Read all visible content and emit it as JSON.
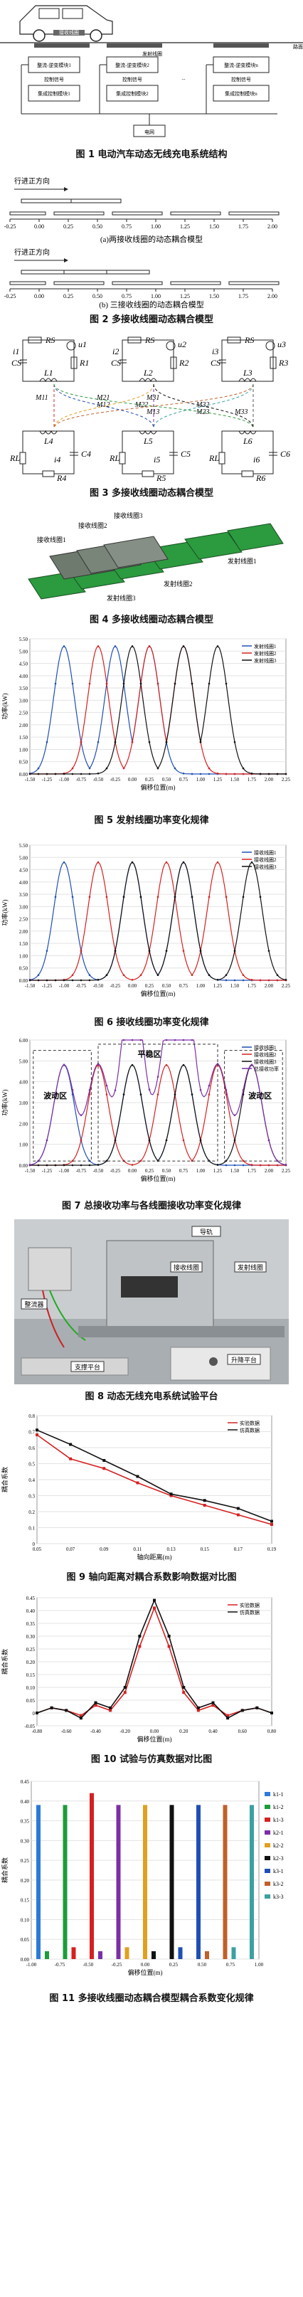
{
  "fig1": {
    "caption": "图 1  电动汽车动态无线充电系统结构",
    "road_label": "路面",
    "receiver_label": "接收线圈",
    "transmit_label": "发射线圈",
    "grid_label": "电网",
    "module_label_1": "整流-逆变模块1",
    "module_label_2": "整流-逆变模块2",
    "module_label_n": "整流-逆变模块n",
    "control_label": "控制信号",
    "ctrl_module_1": "集成控制模块1",
    "ctrl_module_2": "集成控制模块2",
    "ctrl_module_n": "集成控制模块n",
    "dots": "..."
  },
  "fig2": {
    "caption": "图 2  多接收线圈动态耦合模型",
    "direction": "行进正方向",
    "sub_a": "(a)两接收线圈的动态耦合模型",
    "sub_b": "(b) 三接收线圈的动态耦合模型",
    "ticks": [
      "-0.25",
      "0.00",
      "0.25",
      "0.50",
      "0.75",
      "1.00",
      "1.25",
      "1.50",
      "1.75",
      "2.00"
    ]
  },
  "fig3": {
    "caption": "图 3  多接收线圈动态耦合模型",
    "mutual": [
      "M11",
      "M12",
      "M13",
      "M21",
      "M22",
      "M23",
      "M31",
      "M32",
      "M33"
    ],
    "top": [
      {
        "R": "RS",
        "C": "CS",
        "u": "u1",
        "i": "i1",
        "L": "L1",
        "R1": "R1"
      },
      {
        "R": "RS",
        "C": "CS",
        "u": "u2",
        "i": "i2",
        "L": "L2",
        "R1": "R2"
      },
      {
        "R": "RS",
        "C": "CS",
        "u": "u3",
        "i": "i3",
        "L": "L3",
        "R1": "R3"
      }
    ],
    "bottom": [
      {
        "L": "L4",
        "C": "C4",
        "R": "RL",
        "i": "i4",
        "RB": "R4"
      },
      {
        "L": "L5",
        "C": "C5",
        "R": "RL",
        "i": "i5",
        "RB": "R5"
      },
      {
        "L": "L6",
        "C": "C6",
        "R": "RL",
        "i": "i6",
        "RB": "R6"
      }
    ]
  },
  "fig4": {
    "caption": "图 4  多接收线圈动态耦合模型",
    "labels": [
      "接收线圈1",
      "接收线圈2",
      "接收线圈3",
      "发射线圈1",
      "发射线圈2",
      "发射线圈3"
    ]
  },
  "fig5": {
    "caption": "图 5  发射线圈功率变化规律",
    "chart_data": {
      "type": "line",
      "xlabel": "偏移位置(m)",
      "ylabel": "功率(kW)",
      "xlim": [
        -1.5,
        2.25
      ],
      "ylim": [
        0,
        5.5
      ],
      "xticks": [
        "-1.50",
        "-1.25",
        "-1.00",
        "-0.75",
        "-0.50",
        "-0.25",
        "0.00",
        "0.25",
        "0.50",
        "0.75",
        "1.00",
        "1.25",
        "1.50",
        "1.75",
        "2.00",
        "2.25"
      ],
      "yticks": [
        "0.00",
        "0.50",
        "1.00",
        "1.50",
        "2.00",
        "2.50",
        "3.00",
        "3.50",
        "4.00",
        "4.50",
        "5.00",
        "5.50"
      ],
      "legend": "top-right",
      "series": [
        {
          "name": "发射线圈1",
          "color": "#1f4fb4",
          "peaks": [
            -1.0,
            -0.25,
            0.25
          ]
        },
        {
          "name": "发射线圈2",
          "color": "#d62020",
          "peaks": [
            -0.5,
            0.25,
            0.75
          ]
        },
        {
          "name": "发射线圈3",
          "color": "#111111",
          "peaks": [
            0.0,
            0.75,
            1.25
          ]
        }
      ],
      "peak_value": 5.2,
      "width": 0.15
    }
  },
  "fig6": {
    "caption": "图 6  接收线圈功率变化规律",
    "chart_data": {
      "type": "line",
      "xlabel": "偏移位置(m)",
      "ylabel": "功率(kW)",
      "xlim": [
        -1.5,
        2.25
      ],
      "ylim": [
        0,
        5.5
      ],
      "xticks": [
        "-1.50",
        "-1.25",
        "-1.00",
        "-0.75",
        "-0.50",
        "-0.25",
        "0.00",
        "0.25",
        "0.50",
        "0.75",
        "1.00",
        "1.25",
        "1.50",
        "1.75",
        "2.00",
        "2.25"
      ],
      "yticks": [
        "0.00",
        "0.50",
        "1.00",
        "1.50",
        "2.00",
        "2.50",
        "3.00",
        "3.50",
        "4.00",
        "4.50",
        "5.00",
        "5.50"
      ],
      "legend": "top-right",
      "series": [
        {
          "name": "接收线圈1",
          "color": "#1f4fb4",
          "peaks": [
            -1.0,
            0.0,
            0.75
          ]
        },
        {
          "name": "接收线圈2",
          "color": "#d62020",
          "peaks": [
            -0.5,
            0.5,
            1.25
          ]
        },
        {
          "name": "接收线圈3",
          "color": "#111111",
          "peaks": [
            0.0,
            0.75,
            1.75
          ]
        }
      ],
      "peak_value": 4.8,
      "width": 0.15
    }
  },
  "fig7": {
    "caption": "图 7  总接收功率与各线圈接收功率变化规律",
    "left_region": "波动区",
    "mid_region": "平稳区",
    "right_region": "波动区",
    "chart_data": {
      "type": "line",
      "xlabel": "偏移位置(m)",
      "ylabel": "功率(kW)",
      "xlim": [
        -1.5,
        2.25
      ],
      "ylim": [
        0,
        6
      ],
      "xticks": [
        "-1.50",
        "-1.25",
        "-1.00",
        "-0.75",
        "-0.50",
        "-0.25",
        "0.00",
        "0.25",
        "0.50",
        "0.75",
        "1.00",
        "1.25",
        "1.50",
        "1.75",
        "2.00",
        "2.25"
      ],
      "yticks": [
        "0.00",
        "1.00",
        "2.00",
        "3.00",
        "4.00",
        "5.00",
        "6.00"
      ],
      "legend": "top-right",
      "series": [
        {
          "name": "接收线圈1",
          "color": "#1f4fb4",
          "peaks": [
            -1.0,
            0.0,
            0.75
          ]
        },
        {
          "name": "接收线圈2",
          "color": "#d62020",
          "peaks": [
            -0.5,
            0.5,
            1.25
          ]
        },
        {
          "name": "接收线圈3",
          "color": "#111111",
          "peaks": [
            0.0,
            0.75,
            1.75
          ]
        },
        {
          "name": "总接收功率",
          "color": "#7b2fa6",
          "total": true
        }
      ],
      "peak_value": 4.8,
      "width": 0.15
    }
  },
  "fig8": {
    "caption": "图 8  动态无线充电系统试验平台",
    "labels": [
      "导轨",
      "接收线圈",
      "发射线圈",
      "整流器",
      "支撑平台",
      "升降平台"
    ]
  },
  "fig9": {
    "caption": "图 9  轴向距离对耦合系数影响数据对比图",
    "chart_data": {
      "type": "line",
      "xlabel": "轴向距离(m)",
      "ylabel": "耦合系数",
      "x": [
        0.05,
        0.07,
        0.09,
        0.11,
        0.13,
        0.15,
        0.17,
        0.19
      ],
      "xticks": [
        "0.05",
        "0.07",
        "0.09",
        "0.11",
        "0.13",
        "0.15",
        "0.17",
        "0.19"
      ],
      "yticks": [
        "0",
        "0.1",
        "0.2",
        "0.3",
        "0.4",
        "0.5",
        "0.6",
        "0.7",
        "0.8"
      ],
      "ylim": [
        0,
        0.8
      ],
      "legend": "top-right",
      "series": [
        {
          "name": "实验数据",
          "color": "#d62020",
          "values": [
            0.68,
            0.53,
            0.47,
            0.38,
            0.3,
            0.24,
            0.18,
            0.12
          ]
        },
        {
          "name": "仿真数据",
          "color": "#111111",
          "values": [
            0.71,
            0.62,
            0.52,
            0.42,
            0.31,
            0.27,
            0.22,
            0.14
          ]
        }
      ]
    }
  },
  "fig10": {
    "caption": "图 10  试验与仿真数据对比图",
    "chart_data": {
      "type": "line",
      "xlabel": "偏移位置(m)",
      "ylabel": "耦合系数",
      "x": [
        -0.8,
        -0.7,
        -0.6,
        -0.5,
        -0.4,
        -0.3,
        -0.2,
        -0.1,
        0.0,
        0.1,
        0.2,
        0.3,
        0.4,
        0.5,
        0.6,
        0.7,
        0.8
      ],
      "xticks": [
        "-0.80",
        "-0.60",
        "-0.40",
        "-0.20",
        "0.00",
        "0.20",
        "0.40",
        "0.60",
        "0.80"
      ],
      "yticks": [
        "-0.05",
        "0",
        "0.05",
        "0.10",
        "0.15",
        "0.20",
        "0.25",
        "0.30",
        "0.35",
        "0.40",
        "0.45"
      ],
      "ylim": [
        -0.05,
        0.45
      ],
      "legend": "top-right",
      "series": [
        {
          "name": "实验数据",
          "color": "#d62020",
          "values": [
            0.0,
            0.02,
            0.01,
            -0.01,
            0.03,
            0.01,
            0.08,
            0.26,
            0.41,
            0.26,
            0.08,
            0.01,
            0.03,
            -0.01,
            0.01,
            0.02,
            0.0
          ]
        },
        {
          "name": "仿真数据",
          "color": "#111111",
          "values": [
            0.0,
            0.02,
            0.01,
            -0.02,
            0.04,
            0.02,
            0.1,
            0.3,
            0.44,
            0.3,
            0.1,
            0.02,
            0.04,
            -0.02,
            0.01,
            0.02,
            0.0
          ]
        }
      ]
    }
  },
  "fig11": {
    "caption": "图 11  多接收线圈动态耦合模型耦合系数变化规律",
    "chart_data": {
      "type": "bar",
      "xlabel": "偏移位置(m)",
      "ylabel": "耦合系数",
      "xlim": [
        -1.0,
        1.25
      ],
      "ylim": [
        0,
        0.45
      ],
      "xticks": [
        "-1.00",
        "-0.75",
        "-0.50",
        "-0.25",
        "0.00",
        "0.25",
        "0.50",
        "0.75",
        "1.00"
      ],
      "yticks": [
        "0.00",
        "0.05",
        "0.10",
        "0.15",
        "0.20",
        "0.25",
        "0.30",
        "0.35",
        "0.40",
        "0.45"
      ],
      "legend": "right",
      "series": [
        {
          "name": "k1-1",
          "color": "#2c7bd6"
        },
        {
          "name": "k1-2",
          "color": "#1c9c3b"
        },
        {
          "name": "k1-3",
          "color": "#d62020"
        },
        {
          "name": "k2-1",
          "color": "#7b2fa6"
        },
        {
          "name": "k2-2",
          "color": "#e0a020"
        },
        {
          "name": "k2-3",
          "color": "#111111"
        },
        {
          "name": "k3-1",
          "color": "#1f4fb4"
        },
        {
          "name": "k3-2",
          "color": "#c0602a"
        },
        {
          "name": "k3-3",
          "color": "#3ca0a0"
        }
      ],
      "bars": [
        {
          "x": -1.0,
          "s": 0,
          "v": 0.39
        },
        {
          "x": -0.75,
          "s": 1,
          "v": 0.39
        },
        {
          "x": -0.5,
          "s": 2,
          "v": 0.42
        },
        {
          "x": -0.25,
          "s": 3,
          "v": 0.39
        },
        {
          "x": 0.0,
          "s": 4,
          "v": 0.39
        },
        {
          "x": 0.25,
          "s": 5,
          "v": 0.39
        },
        {
          "x": 0.5,
          "s": 6,
          "v": 0.39
        },
        {
          "x": 0.75,
          "s": 7,
          "v": 0.39
        },
        {
          "x": 1.0,
          "s": 8,
          "v": 0.39
        },
        {
          "x": -0.92,
          "s": 1,
          "v": 0.02
        },
        {
          "x": -0.67,
          "s": 2,
          "v": 0.03
        },
        {
          "x": -0.42,
          "s": 3,
          "v": 0.02
        },
        {
          "x": -0.17,
          "s": 4,
          "v": 0.03
        },
        {
          "x": 0.08,
          "s": 5,
          "v": 0.02
        },
        {
          "x": 0.33,
          "s": 6,
          "v": 0.03
        },
        {
          "x": 0.58,
          "s": 7,
          "v": 0.02
        },
        {
          "x": 0.83,
          "s": 8,
          "v": 0.03
        }
      ]
    }
  }
}
